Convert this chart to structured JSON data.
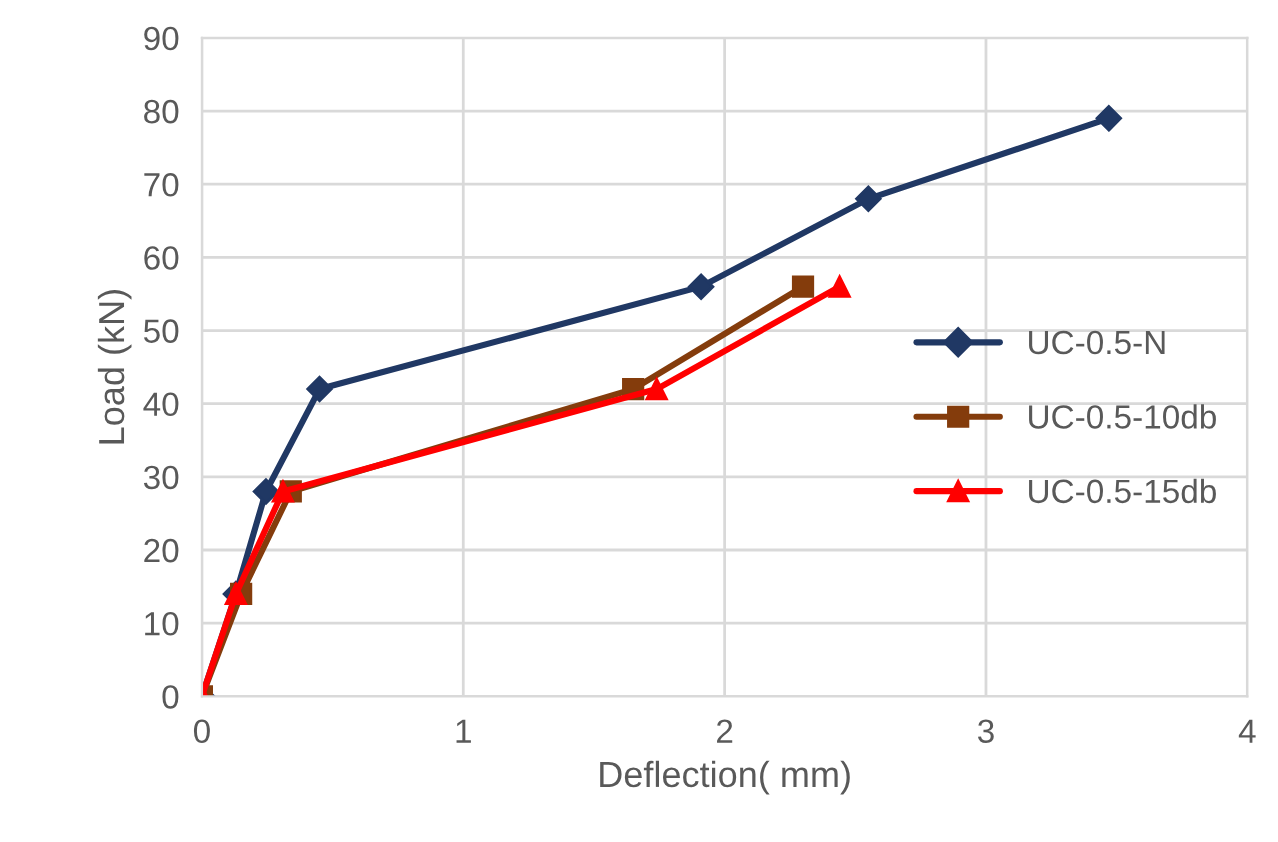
{
  "chart_data": {
    "type": "line",
    "xlabel": "Deflection( mm)",
    "ylabel": "Load (kN)",
    "xlim": [
      0,
      4
    ],
    "xticks": [
      0,
      1,
      2,
      3,
      4
    ],
    "ylim": [
      0,
      90
    ],
    "yticks": [
      0,
      10,
      20,
      30,
      40,
      50,
      60,
      70,
      80,
      90
    ],
    "grid": true,
    "legend": "right",
    "line_style": "solid",
    "series": [
      {
        "name": "UC-0.5-N",
        "color": "#203864",
        "marker": "diamond",
        "x": [
          0,
          0.13,
          0.245,
          0.45,
          1.91,
          2.55,
          3.47
        ],
        "values": [
          0,
          14,
          28,
          42,
          56,
          68,
          79
        ]
      },
      {
        "name": "UC-0.5-10db",
        "color": "#843c0c",
        "marker": "square",
        "x": [
          0,
          0.15,
          0.34,
          1.65,
          2.3
        ],
        "values": [
          0,
          14,
          28,
          42,
          56
        ]
      },
      {
        "name": "UC-0.5-15db",
        "color": "#ff0000",
        "marker": "triangle",
        "x": [
          0,
          0.13,
          0.31,
          1.74,
          2.44
        ],
        "values": [
          0,
          14,
          28,
          42,
          56
        ]
      }
    ]
  }
}
